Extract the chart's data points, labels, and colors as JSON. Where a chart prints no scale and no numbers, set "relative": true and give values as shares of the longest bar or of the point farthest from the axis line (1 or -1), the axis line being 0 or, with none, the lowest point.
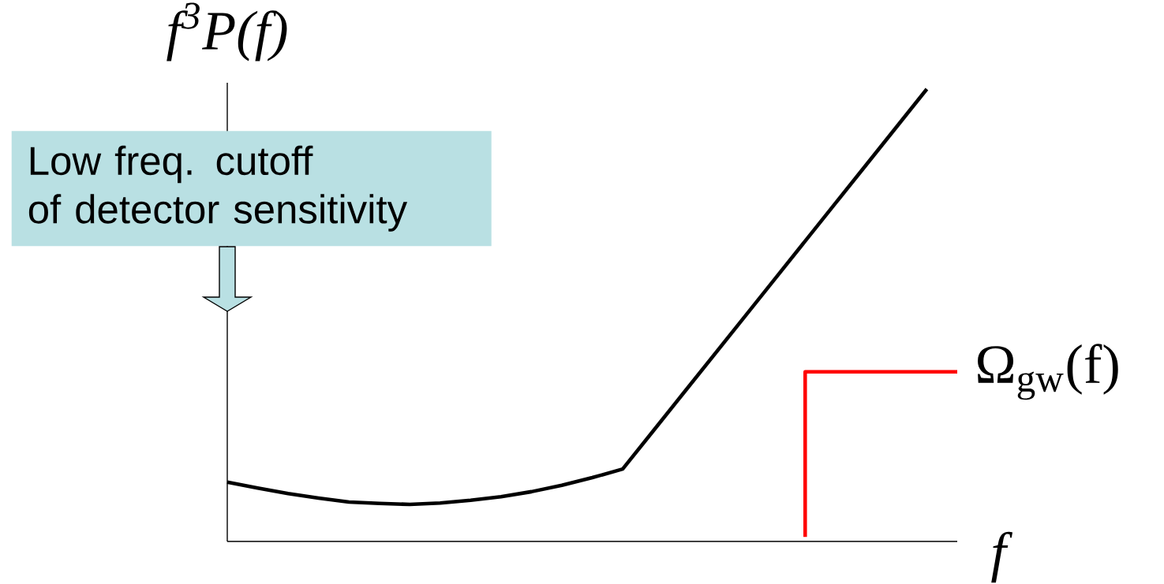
{
  "chart_data": {
    "type": "line",
    "relative": true,
    "ylabel": "f$^{3}$P(f)",
    "xlabel": "f",
    "categories": [
      null,
      null,
      null,
      null,
      null,
      null,
      null,
      null,
      null,
      null,
      null,
      null,
      null,
      null,
      null,
      null,
      null,
      null,
      null,
      null,
      null,
      null,
      null,
      null,
      null
    ],
    "series": [
      {
        "color": "#000000",
        "values": [
          0.131,
          0.118,
          0.106,
          0.096,
          0.087,
          0.084,
          0.082,
          0.085,
          0.091,
          0.099,
          0.11,
          0.124,
          0.141,
          0.16,
          0.244,
          0.328,
          0.412,
          0.496,
          0.58,
          0.664,
          0.748,
          0.832,
          0.916,
          1.0,
          null
        ]
      },
      {
        "type": "step",
        "name": "Ω$_{gw}$(f)",
        "color": "#ff0000",
        "values": [
          null,
          null,
          null,
          null,
          null,
          null,
          null,
          null,
          null,
          null,
          null,
          null,
          null,
          null,
          null,
          null,
          null,
          null,
          null,
          0.01,
          0.375,
          0.375,
          0.375,
          0.375,
          0.375
        ]
      }
    ],
    "annotations": [
      "Low freq. cutoff",
      "of detector sensitivity"
    ],
    "legend": false,
    "marker": "none",
    "line_style": "solid"
  }
}
